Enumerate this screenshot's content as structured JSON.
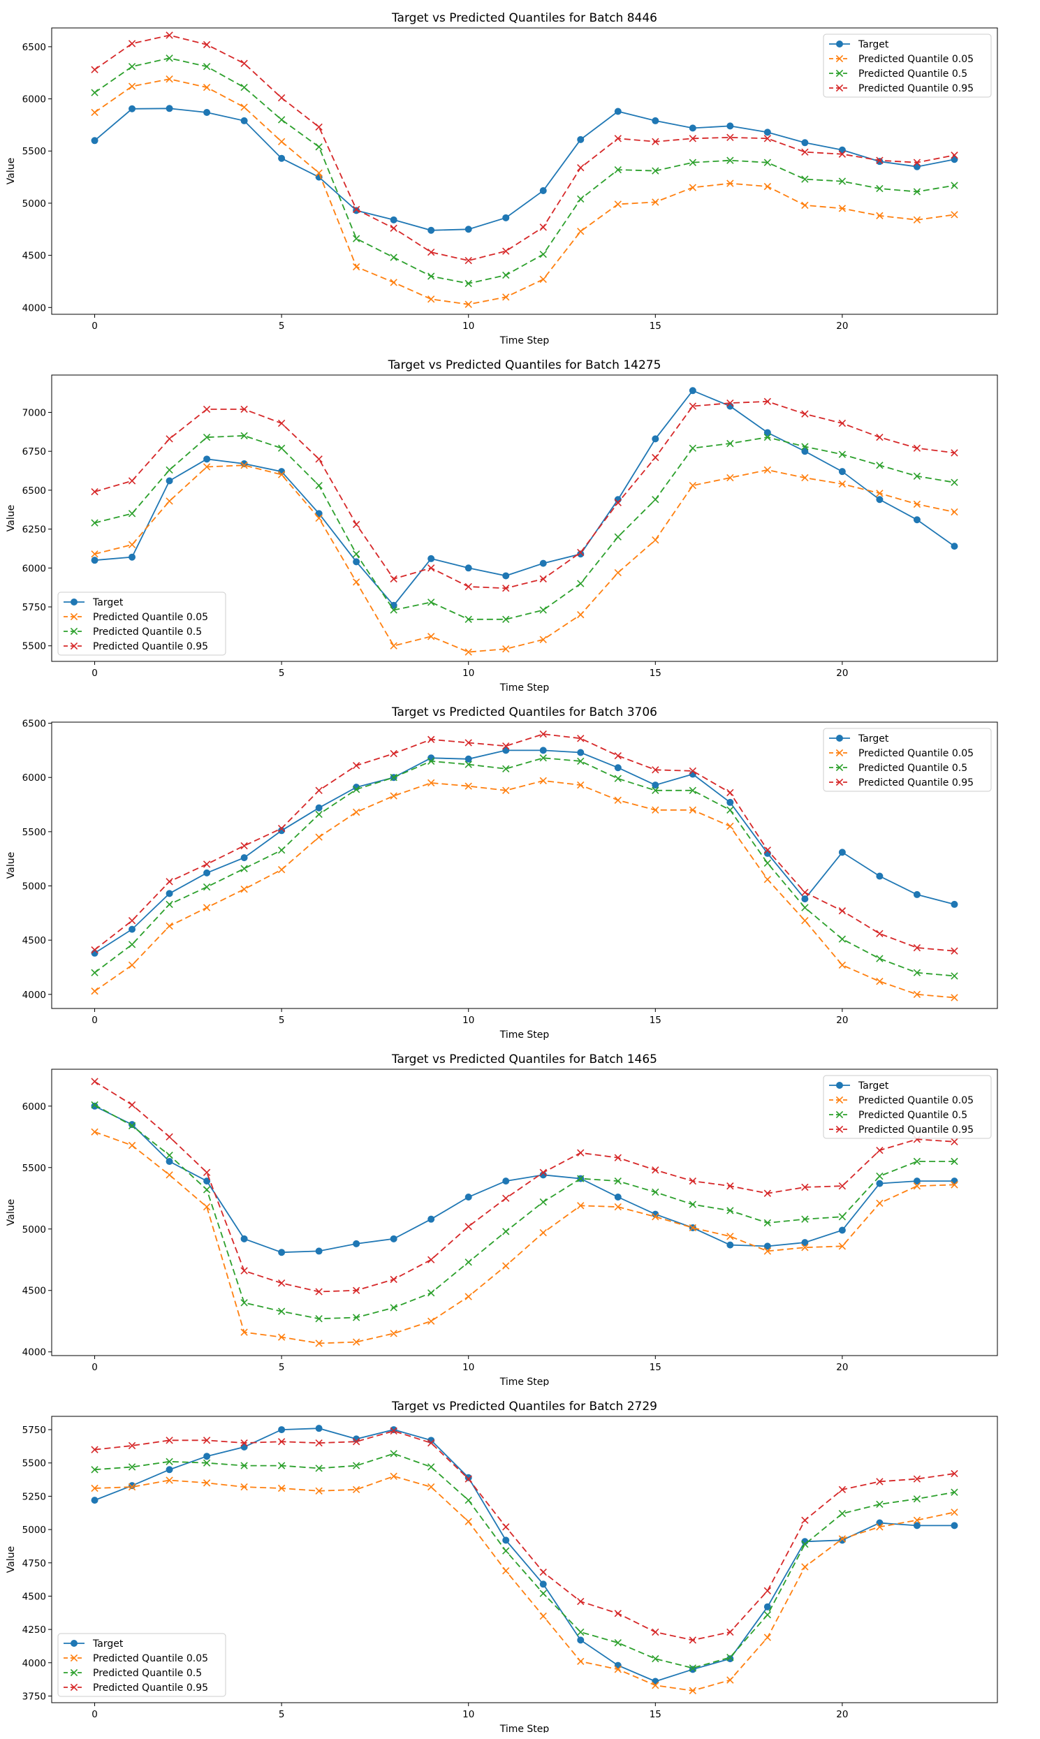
{
  "colors": {
    "target": "#1f77b4",
    "q05": "#ff7f0e",
    "q50": "#2ca02c",
    "q95": "#d62728"
  },
  "chart_data": [
    {
      "type": "line",
      "title": "Target vs Predicted Quantiles for Batch 8446",
      "xlabel": "Time Step",
      "ylabel": "Value",
      "xlim": [
        -1.15,
        24.15
      ],
      "ylim": [
        3935,
        6680
      ],
      "xticks": [
        0,
        5,
        10,
        15,
        20
      ],
      "yticks": [
        4000,
        4500,
        5000,
        5500,
        6000,
        6500
      ],
      "legend": "top-right",
      "x": [
        0,
        1,
        2,
        3,
        4,
        5,
        6,
        7,
        8,
        9,
        10,
        11,
        12,
        13,
        14,
        15,
        16,
        17,
        18,
        19,
        20,
        21,
        22,
        23
      ],
      "series": [
        {
          "name": "Target",
          "values": [
            5600,
            5905,
            5908,
            5870,
            5790,
            5430,
            5250,
            4930,
            4840,
            4740,
            4750,
            4860,
            5120,
            5610,
            5880,
            5790,
            5720,
            5740,
            5680,
            5580,
            5510,
            5400,
            5350,
            5420
          ]
        },
        {
          "name": "Predicted Quantile 0.05",
          "values": [
            5870,
            6120,
            6190,
            6110,
            5920,
            5590,
            5290,
            4390,
            4240,
            4080,
            4030,
            4100,
            4270,
            4730,
            4990,
            5010,
            5150,
            5190,
            5160,
            4980,
            4950,
            4880,
            4840,
            4890
          ]
        },
        {
          "name": "Predicted Quantile 0.5",
          "values": [
            6060,
            6310,
            6390,
            6310,
            6110,
            5800,
            5540,
            4660,
            4480,
            4300,
            4230,
            4310,
            4510,
            5040,
            5320,
            5310,
            5390,
            5410,
            5390,
            5230,
            5210,
            5140,
            5110,
            5170
          ]
        },
        {
          "name": "Predicted Quantile 0.95",
          "values": [
            6280,
            6530,
            6610,
            6520,
            6340,
            6010,
            5730,
            4940,
            4760,
            4530,
            4450,
            4540,
            4770,
            5340,
            5620,
            5590,
            5620,
            5630,
            5620,
            5490,
            5470,
            5410,
            5390,
            5460
          ]
        }
      ]
    },
    {
      "type": "line",
      "title": "Target vs Predicted Quantiles for Batch 14275",
      "xlabel": "Time Step",
      "ylabel": "Value",
      "xlim": [
        -1.15,
        24.15
      ],
      "ylim": [
        5400,
        7240
      ],
      "xticks": [
        0,
        5,
        10,
        15,
        20
      ],
      "yticks": [
        5500,
        5750,
        6000,
        6250,
        6500,
        6750,
        7000
      ],
      "legend": "bottom-left",
      "x": [
        0,
        1,
        2,
        3,
        4,
        5,
        6,
        7,
        8,
        9,
        10,
        11,
        12,
        13,
        14,
        15,
        16,
        17,
        18,
        19,
        20,
        21,
        22,
        23
      ],
      "series": [
        {
          "name": "Target",
          "values": [
            6050,
            6070,
            6560,
            6700,
            6670,
            6620,
            6350,
            6040,
            5760,
            6060,
            6000,
            5950,
            6030,
            6090,
            6440,
            6830,
            7140,
            7040,
            6870,
            6750,
            6620,
            6440,
            6310,
            6140
          ]
        },
        {
          "name": "Predicted Quantile 0.05",
          "values": [
            6090,
            6150,
            6430,
            6650,
            6660,
            6600,
            6320,
            5910,
            5500,
            5560,
            5460,
            5480,
            5540,
            5700,
            5970,
            6180,
            6530,
            6580,
            6630,
            6580,
            6540,
            6480,
            6410,
            6360
          ]
        },
        {
          "name": "Predicted Quantile 0.5",
          "values": [
            6290,
            6350,
            6630,
            6840,
            6850,
            6770,
            6530,
            6090,
            5730,
            5780,
            5670,
            5670,
            5730,
            5900,
            6200,
            6440,
            6770,
            6800,
            6840,
            6780,
            6730,
            6660,
            6590,
            6550
          ]
        },
        {
          "name": "Predicted Quantile 0.95",
          "values": [
            6490,
            6560,
            6830,
            7020,
            7020,
            6930,
            6700,
            6280,
            5930,
            6000,
            5880,
            5870,
            5930,
            6100,
            6420,
            6710,
            7040,
            7060,
            7070,
            6990,
            6930,
            6840,
            6770,
            6740
          ]
        }
      ]
    },
    {
      "type": "line",
      "title": "Target vs Predicted Quantiles for Batch 3706",
      "xlabel": "Time Step",
      "ylabel": "Value",
      "xlim": [
        -1.15,
        24.15
      ],
      "ylim": [
        3870,
        6510
      ],
      "xticks": [
        0,
        5,
        10,
        15,
        20
      ],
      "yticks": [
        4000,
        4500,
        5000,
        5500,
        6000,
        6500
      ],
      "legend": "top-right",
      "x": [
        0,
        1,
        2,
        3,
        4,
        5,
        6,
        7,
        8,
        9,
        10,
        11,
        12,
        13,
        14,
        15,
        16,
        17,
        18,
        19,
        20,
        21,
        22,
        23
      ],
      "series": [
        {
          "name": "Target",
          "values": [
            4380,
            4600,
            4930,
            5120,
            5260,
            5510,
            5720,
            5910,
            6000,
            6180,
            6170,
            6250,
            6250,
            6230,
            6090,
            5930,
            6030,
            5770,
            5300,
            4880,
            5310,
            5090,
            4920,
            4830
          ]
        },
        {
          "name": "Predicted Quantile 0.05",
          "values": [
            4030,
            4270,
            4630,
            4800,
            4970,
            5150,
            5450,
            5680,
            5830,
            5950,
            5920,
            5880,
            5970,
            5930,
            5790,
            5700,
            5700,
            5550,
            5060,
            4680,
            4270,
            4120,
            4000,
            3970
          ]
        },
        {
          "name": "Predicted Quantile 0.5",
          "values": [
            4200,
            4460,
            4830,
            4990,
            5160,
            5330,
            5660,
            5890,
            6000,
            6150,
            6120,
            6080,
            6180,
            6150,
            5990,
            5880,
            5880,
            5700,
            5210,
            4800,
            4510,
            4330,
            4200,
            4170
          ]
        },
        {
          "name": "Predicted Quantile 0.95",
          "values": [
            4410,
            4680,
            5040,
            5200,
            5370,
            5530,
            5880,
            6110,
            6220,
            6350,
            6320,
            6290,
            6400,
            6360,
            6200,
            6070,
            6060,
            5860,
            5330,
            4940,
            4770,
            4560,
            4430,
            4400
          ]
        }
      ]
    },
    {
      "type": "line",
      "title": "Target vs Predicted Quantiles for Batch 1465",
      "xlabel": "Time Step",
      "ylabel": "Value",
      "xlim": [
        -1.15,
        24.15
      ],
      "ylim": [
        3970,
        6300
      ],
      "xticks": [
        0,
        5,
        10,
        15,
        20
      ],
      "yticks": [
        4000,
        4500,
        5000,
        5500,
        6000
      ],
      "legend": "top-right",
      "x": [
        0,
        1,
        2,
        3,
        4,
        5,
        6,
        7,
        8,
        9,
        10,
        11,
        12,
        13,
        14,
        15,
        16,
        17,
        18,
        19,
        20,
        21,
        22,
        23
      ],
      "series": [
        {
          "name": "Target",
          "values": [
            6000,
            5850,
            5550,
            5390,
            4920,
            4810,
            4820,
            4880,
            4920,
            5080,
            5260,
            5390,
            5440,
            5410,
            5260,
            5120,
            5010,
            4870,
            4860,
            4890,
            4990,
            5370,
            5390,
            5390
          ]
        },
        {
          "name": "Predicted Quantile 0.05",
          "values": [
            5790,
            5680,
            5440,
            5180,
            4160,
            4120,
            4070,
            4080,
            4150,
            4250,
            4450,
            4700,
            4970,
            5190,
            5180,
            5100,
            5010,
            4940,
            4820,
            4850,
            4860,
            5210,
            5350,
            5360
          ]
        },
        {
          "name": "Predicted Quantile 0.5",
          "values": [
            6010,
            5840,
            5600,
            5320,
            4400,
            4330,
            4270,
            4280,
            4360,
            4480,
            4730,
            4980,
            5220,
            5410,
            5390,
            5300,
            5200,
            5150,
            5050,
            5080,
            5100,
            5430,
            5550,
            5550
          ]
        },
        {
          "name": "Predicted Quantile 0.95",
          "values": [
            6200,
            6010,
            5750,
            5460,
            4660,
            4560,
            4490,
            4500,
            4590,
            4750,
            5020,
            5250,
            5460,
            5620,
            5580,
            5480,
            5390,
            5350,
            5290,
            5340,
            5350,
            5640,
            5730,
            5710
          ]
        }
      ]
    },
    {
      "type": "line",
      "title": "Target vs Predicted Quantiles for Batch 2729",
      "xlabel": "Time Step",
      "ylabel": "Value",
      "xlim": [
        -1.15,
        24.15
      ],
      "ylim": [
        3700,
        5850
      ],
      "xticks": [
        0,
        5,
        10,
        15,
        20
      ],
      "yticks": [
        3750,
        4000,
        4250,
        4500,
        4750,
        5000,
        5250,
        5500,
        5750
      ],
      "legend": "bottom-left",
      "x": [
        0,
        1,
        2,
        3,
        4,
        5,
        6,
        7,
        8,
        9,
        10,
        11,
        12,
        13,
        14,
        15,
        16,
        17,
        18,
        19,
        20,
        21,
        22,
        23
      ],
      "series": [
        {
          "name": "Target",
          "values": [
            5220,
            5330,
            5450,
            5550,
            5620,
            5750,
            5760,
            5680,
            5750,
            5670,
            5390,
            4920,
            4590,
            4170,
            3980,
            3860,
            3950,
            4030,
            4420,
            4910,
            4920,
            5050,
            5030,
            5030
          ]
        },
        {
          "name": "Predicted Quantile 0.05",
          "values": [
            5310,
            5320,
            5370,
            5350,
            5320,
            5310,
            5290,
            5300,
            5400,
            5320,
            5060,
            4690,
            4350,
            4010,
            3950,
            3830,
            3790,
            3870,
            4190,
            4720,
            4930,
            5020,
            5070,
            5130
          ]
        },
        {
          "name": "Predicted Quantile 0.5",
          "values": [
            5450,
            5470,
            5510,
            5500,
            5480,
            5480,
            5460,
            5480,
            5570,
            5470,
            5220,
            4840,
            4520,
            4230,
            4150,
            4030,
            3960,
            4040,
            4360,
            4890,
            5120,
            5190,
            5230,
            5280
          ]
        },
        {
          "name": "Predicted Quantile 0.95",
          "values": [
            5600,
            5630,
            5670,
            5670,
            5650,
            5660,
            5650,
            5660,
            5740,
            5650,
            5380,
            5020,
            4680,
            4460,
            4370,
            4230,
            4170,
            4230,
            4540,
            5070,
            5300,
            5360,
            5380,
            5420
          ]
        }
      ]
    }
  ]
}
